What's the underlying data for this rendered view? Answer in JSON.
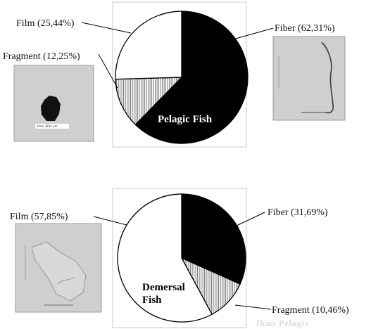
{
  "chart_data": [
    {
      "type": "pie",
      "title": "Pelagic Fish",
      "categories": [
        "Fiber",
        "Fragment",
        "Film"
      ],
      "values": [
        62.31,
        12.25,
        25.44
      ],
      "labels": [
        "Fiber (62,31%)",
        "Fragment (12,25%)",
        "Film (25,44%)"
      ]
    },
    {
      "type": "pie",
      "title": "Demersal\nFish",
      "categories": [
        "Fiber",
        "Fragment",
        "Film"
      ],
      "values": [
        31.69,
        10.46,
        57.85
      ],
      "labels": [
        "Fiber (31,69%)",
        "Fragment (10,46%)",
        "Film (57,85%)"
      ]
    }
  ],
  "photos": {
    "fragment_scale_text": "5mm  3835 µm"
  },
  "watermark": "Ikan Pelagis",
  "colors": {
    "fiber": "#000000",
    "fragment": "#c9c9c9",
    "film": "#ffffff"
  }
}
